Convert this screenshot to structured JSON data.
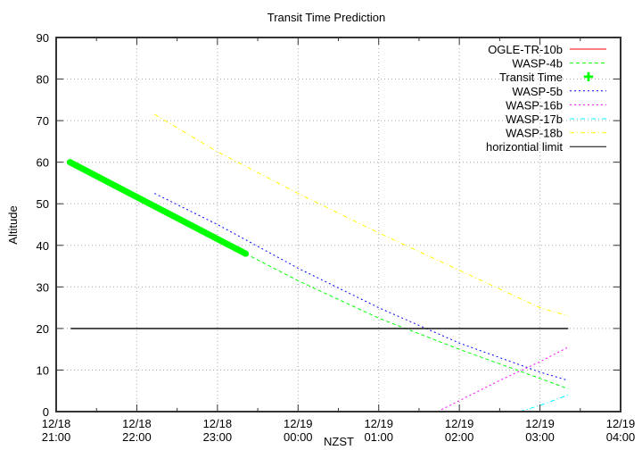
{
  "chart_data": {
    "type": "line",
    "title": "Transit Time Prediction",
    "xlabel": "NZST",
    "ylabel": "Altitude",
    "xlim_hours": [
      0,
      7
    ],
    "ylim": [
      0,
      90
    ],
    "grid": true,
    "legend_position": "top-right",
    "x_ticks": [
      {
        "date": "12/18",
        "time": "21:00"
      },
      {
        "date": "12/18",
        "time": "22:00"
      },
      {
        "date": "12/18",
        "time": "23:00"
      },
      {
        "date": "12/19",
        "time": "00:00"
      },
      {
        "date": "12/19",
        "time": "01:00"
      },
      {
        "date": "12/19",
        "time": "02:00"
      },
      {
        "date": "12/19",
        "time": "03:00"
      },
      {
        "date": "12/19",
        "time": "04:00"
      }
    ],
    "y_ticks": [
      0,
      10,
      20,
      30,
      40,
      50,
      60,
      70,
      80,
      90
    ],
    "x_unit_note": "x values are hours after 12/18 21:00 NZST",
    "series": [
      {
        "name": "OGLE-TR-10b",
        "color": "#ff0000",
        "style": "solid",
        "points": []
      },
      {
        "name": "WASP-4b",
        "color": "#00ff00",
        "style": "dashed",
        "points": [
          [
            2.35,
            38
          ],
          [
            3.0,
            31.5
          ],
          [
            4.0,
            22.5
          ],
          [
            5.0,
            15
          ],
          [
            6.0,
            8
          ],
          [
            6.35,
            5.5
          ]
        ]
      },
      {
        "name": "Transit Time",
        "color": "#00ff00",
        "style": "thick-markers",
        "points": [
          [
            0.17,
            60
          ],
          [
            1.0,
            55.5
          ],
          [
            2.0,
            50
          ],
          [
            2.35,
            38
          ]
        ]
      },
      {
        "name": "WASP-5b",
        "color": "#0000ff",
        "style": "dotted",
        "points": [
          [
            1.22,
            52.5
          ],
          [
            2.0,
            45
          ],
          [
            3.0,
            34.5
          ],
          [
            4.0,
            25
          ],
          [
            5.0,
            16.5
          ],
          [
            6.0,
            9.5
          ],
          [
            6.35,
            7.5
          ]
        ]
      },
      {
        "name": "WASP-16b",
        "color": "#ff00ff",
        "style": "dotted",
        "points": [
          [
            4.73,
            0
          ],
          [
            5.5,
            7.5
          ],
          [
            6.0,
            12
          ],
          [
            6.35,
            15.5
          ]
        ]
      },
      {
        "name": "WASP-17b",
        "color": "#00ffff",
        "style": "dash-dot",
        "points": [
          [
            5.75,
            0
          ],
          [
            6.0,
            1.5
          ],
          [
            6.35,
            4
          ]
        ]
      },
      {
        "name": "WASP-18b",
        "color": "#ffff00",
        "style": "dash-dot",
        "points": [
          [
            1.22,
            71.5
          ],
          [
            2.0,
            62.5
          ],
          [
            3.0,
            52.5
          ],
          [
            4.0,
            43
          ],
          [
            5.0,
            34
          ],
          [
            6.0,
            25
          ],
          [
            6.35,
            23
          ]
        ]
      },
      {
        "name": "horizontial limit",
        "color": "#000000",
        "style": "solid",
        "points": [
          [
            0.18,
            20
          ],
          [
            6.35,
            20
          ]
        ]
      }
    ]
  }
}
